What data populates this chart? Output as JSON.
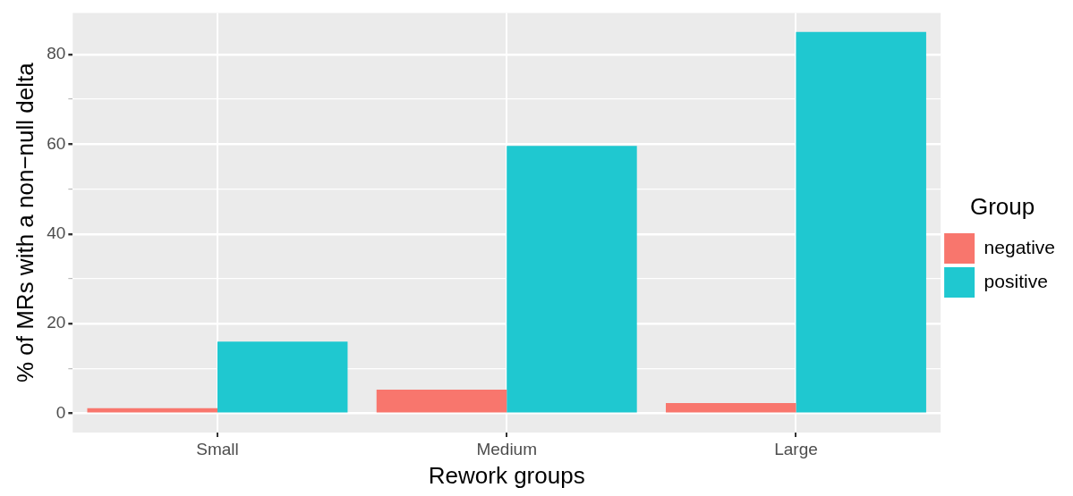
{
  "chart_data": {
    "type": "bar",
    "xlabel": "Rework groups",
    "ylabel": "% of MRs with a non−null delta",
    "legend_title": "Group",
    "categories": [
      "Small",
      "Medium",
      "Large"
    ],
    "series": [
      {
        "name": "negative",
        "color": "#f8766d",
        "values": [
          1.2,
          5.3,
          2.3
        ]
      },
      {
        "name": "positive",
        "color": "#1fc8d0",
        "values": [
          16.0,
          59.6,
          85.0
        ]
      }
    ],
    "ylim": [
      -4.25,
      89.25
    ],
    "yticks": [
      0,
      {
        "value": 10,
        "label": null
      },
      20,
      {
        "value": 30,
        "label": null
      },
      40,
      {
        "value": 50,
        "label": null
      },
      60,
      {
        "value": 70,
        "label": null
      },
      80
    ],
    "grid": true,
    "legend": "right"
  }
}
